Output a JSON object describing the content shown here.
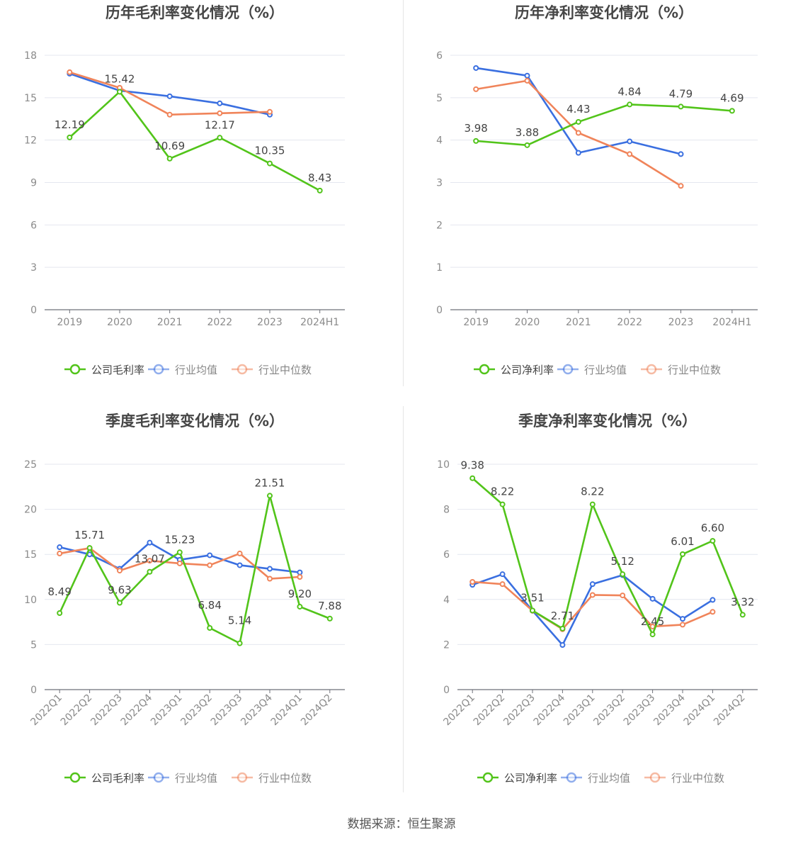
{
  "source": "数据来源：恒生聚源",
  "colors": {
    "company": "#52c41a",
    "avg": "#3a6fe0",
    "median": "#f0845a",
    "axis": "#6e7079",
    "grid": "#e4e7ef",
    "title": "#464646"
  },
  "chart_data": [
    {
      "type": "line",
      "title": "历年毛利率变化情况（%）",
      "categories": [
        "2019",
        "2020",
        "2021",
        "2022",
        "2023",
        "2024H1"
      ],
      "ylim": [
        0,
        18
      ],
      "yticks": [
        0,
        3,
        6,
        9,
        12,
        15,
        18
      ],
      "grid": true,
      "legend": "bottom-center",
      "series": [
        {
          "name": "公司毛利率",
          "color": "#52c41a",
          "values": [
            12.19,
            15.42,
            10.69,
            12.17,
            10.35,
            8.43
          ],
          "labels": true
        },
        {
          "name": "行业均值",
          "color": "#3a6fe0",
          "values": [
            16.7,
            15.5,
            15.1,
            14.6,
            13.8,
            null
          ],
          "labels": false
        },
        {
          "name": "行业中位数",
          "color": "#f0845a",
          "values": [
            16.8,
            15.7,
            13.8,
            13.9,
            14.0,
            null
          ],
          "labels": false
        }
      ]
    },
    {
      "type": "line",
      "title": "历年净利率变化情况（%）",
      "categories": [
        "2019",
        "2020",
        "2021",
        "2022",
        "2023",
        "2024H1"
      ],
      "ylim": [
        0,
        6
      ],
      "yticks": [
        0,
        1,
        2,
        3,
        4,
        5,
        6
      ],
      "grid": true,
      "legend": "bottom-center",
      "series": [
        {
          "name": "公司净利率",
          "color": "#52c41a",
          "values": [
            3.98,
            3.88,
            4.43,
            4.84,
            4.79,
            4.69
          ],
          "labels": true
        },
        {
          "name": "行业均值",
          "color": "#3a6fe0",
          "values": [
            5.7,
            5.52,
            3.7,
            3.97,
            3.67,
            null
          ],
          "labels": false
        },
        {
          "name": "行业中位数",
          "color": "#f0845a",
          "values": [
            5.2,
            5.4,
            4.17,
            3.67,
            2.92,
            null
          ],
          "labels": false
        }
      ]
    },
    {
      "type": "line",
      "title": "季度毛利率变化情况（%）",
      "categories": [
        "2022Q1",
        "2022Q2",
        "2022Q3",
        "2022Q4",
        "2023Q1",
        "2023Q2",
        "2023Q3",
        "2023Q4",
        "2024Q1",
        "2024Q2"
      ],
      "ylim": [
        0,
        25
      ],
      "yticks": [
        0,
        5,
        10,
        15,
        20,
        25
      ],
      "grid": true,
      "legend": "bottom-center",
      "series": [
        {
          "name": "公司毛利率",
          "color": "#52c41a",
          "values": [
            8.49,
            15.71,
            9.63,
            13.07,
            15.23,
            6.84,
            5.14,
            21.51,
            9.2,
            7.88
          ],
          "labels": true,
          "label_text": [
            "8.49",
            "15.71",
            "9.63",
            "13.07",
            "15.23",
            "6.84",
            "5.14",
            "21.51",
            "9.20",
            "7.88"
          ]
        },
        {
          "name": "行业均值",
          "color": "#3a6fe0",
          "values": [
            15.8,
            15.0,
            13.4,
            16.3,
            14.4,
            14.9,
            13.8,
            13.4,
            13.0,
            null
          ],
          "labels": false
        },
        {
          "name": "行业中位数",
          "color": "#f0845a",
          "values": [
            15.1,
            15.7,
            13.2,
            14.3,
            14.0,
            13.8,
            15.1,
            12.3,
            12.5,
            null
          ],
          "labels": false
        }
      ]
    },
    {
      "type": "line",
      "title": "季度净利率变化情况（%）",
      "categories": [
        "2022Q1",
        "2022Q2",
        "2022Q3",
        "2022Q4",
        "2023Q1",
        "2023Q2",
        "2023Q3",
        "2023Q4",
        "2024Q1",
        "2024Q2"
      ],
      "ylim": [
        0,
        10
      ],
      "yticks": [
        0,
        2,
        4,
        6,
        8,
        10
      ],
      "grid": true,
      "legend": "bottom-center",
      "series": [
        {
          "name": "公司净利率",
          "color": "#52c41a",
          "values": [
            9.38,
            8.22,
            3.51,
            2.71,
            8.22,
            5.12,
            2.45,
            6.01,
            6.6,
            3.32
          ],
          "labels": true,
          "label_text": [
            "9.38",
            "8.22",
            "3.51",
            "2.71",
            "8.22",
            "5.12",
            "2.45",
            "6.01",
            "6.60",
            "3.32"
          ]
        },
        {
          "name": "行业均值",
          "color": "#3a6fe0",
          "values": [
            4.65,
            5.12,
            3.5,
            1.98,
            4.68,
            5.08,
            4.03,
            3.14,
            3.98,
            null
          ],
          "labels": false
        },
        {
          "name": "行业中位数",
          "color": "#f0845a",
          "values": [
            4.78,
            4.68,
            3.5,
            2.68,
            4.2,
            4.18,
            2.8,
            2.88,
            3.45,
            null
          ],
          "labels": false
        }
      ]
    }
  ]
}
